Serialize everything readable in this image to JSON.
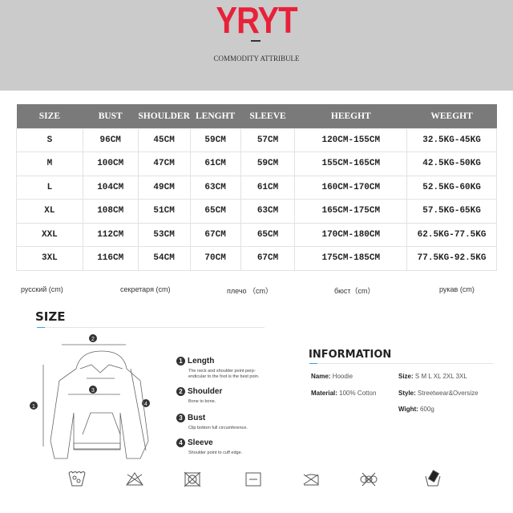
{
  "header": {
    "brand": "YRYT",
    "subtitle": "COMMODITY ATTRIBULE",
    "brand_color": "#e8213a"
  },
  "size_table": {
    "columns": [
      "SIZE",
      "BUST",
      "SHOULDER",
      "LENGHT",
      "SLEEVE",
      "HEEGHT",
      "WEEGHT"
    ],
    "rows": [
      [
        "S",
        "96CM",
        "45CM",
        "59CM",
        "57CM",
        "120CM-155CM",
        "32.5KG-45KG"
      ],
      [
        "M",
        "100CM",
        "47CM",
        "61CM",
        "59CM",
        "155CM-165CM",
        "42.5KG-50KG"
      ],
      [
        "L",
        "104CM",
        "49CM",
        "63CM",
        "61CM",
        "160CM-170CM",
        "52.5KG-60KG"
      ],
      [
        "XL",
        "108CM",
        "51CM",
        "65CM",
        "63CM",
        "165CM-175CM",
        "57.5KG-65KG"
      ],
      [
        "XXL",
        "112CM",
        "53CM",
        "67CM",
        "65CM",
        "170CM-180CM",
        "62.5KG-77.5KG"
      ],
      [
        "3XL",
        "116CM",
        "54CM",
        "70CM",
        "67CM",
        "175CM-185CM",
        "77.5KG-92.5KG"
      ]
    ]
  },
  "russian_labels": [
    "русский (cm)",
    "секретаря (cm)",
    "плечо （cm）",
    "бюст（cm）",
    "рукав (cm)"
  ],
  "size_section": {
    "title": "SIZE",
    "measures": [
      {
        "n": "1",
        "title": "Length",
        "desc": "The neck and shoulder point perp-endicular to the foot is the best poin."
      },
      {
        "n": "2",
        "title": "Shoulder",
        "desc": "Bone to bone."
      },
      {
        "n": "3",
        "title": "Bust",
        "desc": "Clip bottom full circumference."
      },
      {
        "n": "4",
        "title": "Sleeve",
        "desc": "Shoulder point to cuff edge."
      }
    ]
  },
  "information": {
    "title": "INFORMATION",
    "name_label": "Name:",
    "name": "Hoodie",
    "material_label": "Material:",
    "material": "100% Cotton",
    "size_label": "Size:",
    "size": "S M L XL 2XL 3XL",
    "style_label": "Style:",
    "style": "Streetwear&Oversize",
    "weight_label": "Wight:",
    "weight": "600g"
  },
  "care_icons": [
    "hand-wash-icon",
    "do-not-bleach-icon",
    "do-not-tumble-dry-icon",
    "dry-flat-icon",
    "do-not-iron-icon",
    "do-not-dry-clean-icon",
    "wash-separately-icon"
  ]
}
